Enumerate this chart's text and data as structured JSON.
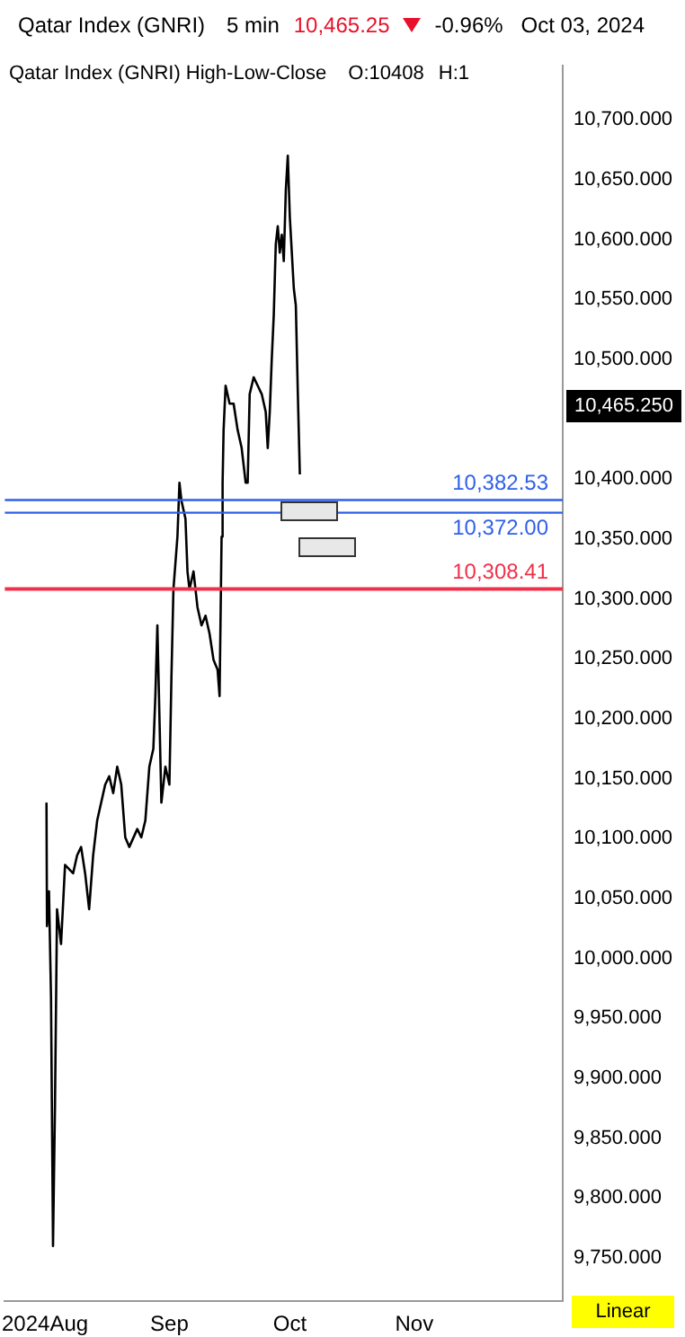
{
  "chart_data": {
    "type": "line",
    "title": "Qatar Index  (GNRI)",
    "annotations": [
      "5 min",
      "10,465.25",
      "-0.96%",
      "Oct 03, 2024",
      "Qatar Index (GNRI)  High-Low-Close",
      "O:10408",
      "H:1",
      "Linear",
      "10,465.250"
    ],
    "x": [
      "2024-08-01T09:00",
      "2024-08-01T12:00",
      "2024-08-02",
      "2024-08-02T12:00",
      "2024-08-03",
      "2024-08-03T12:00",
      "2024-08-04",
      "2024-08-05",
      "2024-08-06",
      "2024-08-08",
      "2024-08-09",
      "2024-08-10",
      "2024-08-11",
      "2024-08-12",
      "2024-08-13",
      "2024-08-14",
      "2024-08-16",
      "2024-08-17",
      "2024-08-18",
      "2024-08-19",
      "2024-08-20",
      "2024-08-21",
      "2024-08-22",
      "2024-08-24",
      "2024-08-25",
      "2024-08-26",
      "2024-08-27",
      "2024-08-28",
      "2024-08-28T12:00",
      "2024-08-29",
      "2024-08-29T12:00",
      "2024-08-30",
      "2024-08-31",
      "2024-09-01",
      "2024-09-01T12:00",
      "2024-09-02",
      "2024-09-03",
      "2024-09-03T12:00",
      "2024-09-04",
      "2024-09-05",
      "2024-09-05T12:00",
      "2024-09-06",
      "2024-09-07",
      "2024-09-08",
      "2024-09-09",
      "2024-09-10",
      "2024-09-11",
      "2024-09-12",
      "2024-09-13",
      "2024-09-13T12:00",
      "2024-09-14",
      "2024-09-14T06:00",
      "2024-09-14T12:00",
      "2024-09-15",
      "2024-09-16",
      "2024-09-17",
      "2024-09-18",
      "2024-09-19",
      "2024-09-20",
      "2024-09-20T12:00",
      "2024-09-21",
      "2024-09-22",
      "2024-09-23",
      "2024-09-24",
      "2024-09-25",
      "2024-09-25T12:00",
      "2024-09-26",
      "2024-09-26T12:00",
      "2024-09-27",
      "2024-09-27T12:00",
      "2024-09-28",
      "2024-09-28T12:00",
      "2024-09-29",
      "2024-09-29T12:00",
      "2024-09-30",
      "2024-09-30T12:00",
      "2024-10-01",
      "2024-10-01T12:00",
      "2024-10-02",
      "2024-10-02T12:00",
      "2024-10-03",
      "2024-10-03T12:00"
    ],
    "series": [
      {
        "color": "#000000",
        "values": [
          10130,
          10027,
          10056,
          9967,
          9760,
          9879,
          10041,
          10012,
          10078,
          10071,
          10086,
          10093,
          10071,
          10041,
          10086,
          10115,
          10145,
          10152,
          10138,
          10160,
          10145,
          10101,
          10093,
          10108,
          10101,
          10115,
          10160,
          10175,
          10219,
          10278,
          10204,
          10130,
          10160,
          10145,
          10234,
          10308,
          10352,
          10397,
          10382,
          10367,
          10323,
          10308,
          10323,
          10293,
          10278,
          10286,
          10271,
          10249,
          10241,
          10219,
          10352,
          10397,
          10441,
          10478,
          10463,
          10463,
          10441,
          10426,
          10397,
          10397,
          10471,
          10485,
          10478,
          10471,
          10456,
          10426,
          10456,
          10500,
          10537,
          10596,
          10611,
          10589,
          10604,
          10582,
          10641,
          10670,
          10619,
          10589,
          10559,
          10545,
          10471,
          10404
        ]
      }
    ],
    "xlim": [
      "2024-07-22",
      "2024-12-08"
    ],
    "xticks": [
      {
        "value": "2024-08-01",
        "label": "2024Aug"
      },
      {
        "value": "2024-09-01",
        "label": "Sep"
      },
      {
        "value": "2024-10-01",
        "label": "Oct"
      },
      {
        "value": "2024-11-01",
        "label": "Nov"
      }
    ],
    "ylim": [
      9714,
      10745
    ],
    "yticks": [
      {
        "value": 9750,
        "label": "9,750.000"
      },
      {
        "value": 9800,
        "label": "9,800.000"
      },
      {
        "value": 9850,
        "label": "9,850.000"
      },
      {
        "value": 9900,
        "label": "9,900.000"
      },
      {
        "value": 9950,
        "label": "9,950.000"
      },
      {
        "value": 10000,
        "label": "10,000.000"
      },
      {
        "value": 10050,
        "label": "10,050.000"
      },
      {
        "value": 10100,
        "label": "10,100.000"
      },
      {
        "value": 10150,
        "label": "10,150.000"
      },
      {
        "value": 10200,
        "label": "10,200.000"
      },
      {
        "value": 10250,
        "label": "10,250.000"
      },
      {
        "value": 10300,
        "label": "10,300.000"
      },
      {
        "value": 10350,
        "label": "10,350.000"
      },
      {
        "value": 10400,
        "label": "10,400.000"
      },
      {
        "value": 10500,
        "label": "10,500.000"
      },
      {
        "value": 10550,
        "label": "10,550.000"
      },
      {
        "value": 10600,
        "label": "10,600.000"
      },
      {
        "value": 10650,
        "label": "10,650.000"
      },
      {
        "value": 10700,
        "label": "10,700.000"
      }
    ],
    "ref_lines": [
      {
        "axis": "y",
        "value": 10382.53,
        "label": "10,382.53",
        "color": "#2f5fe8"
      },
      {
        "axis": "y",
        "value": 10372.0,
        "label": "10,372.00",
        "color": "#2f5fe8"
      },
      {
        "axis": "y",
        "value": 10308.41,
        "label": "10,308.41",
        "color": "#f0304a"
      }
    ],
    "marker": "none",
    "line_style": "solid",
    "grid": false,
    "legend": false
  }
}
